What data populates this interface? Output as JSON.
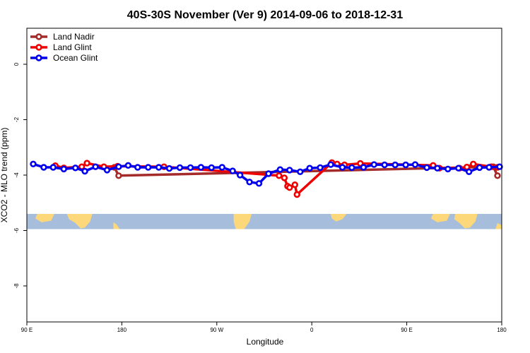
{
  "chart_data": {
    "type": "line",
    "title": "40S-30S November (Ver 9)   2014-09-06 to 2018-12-31",
    "xlabel": "Longitude",
    "ylabel": "XCO2 - MLO trend (ppm)",
    "xlim": [
      90,
      540
    ],
    "ylim": [
      -9.3,
      1.3
    ],
    "x_ticks": [
      {
        "value": 90,
        "label": "90 E"
      },
      {
        "value": 180,
        "label": "180"
      },
      {
        "value": 270,
        "label": "90 W"
      },
      {
        "value": 360,
        "label": "0"
      },
      {
        "value": 450,
        "label": "90 E"
      },
      {
        "value": 540,
        "label": "180"
      }
    ],
    "y_ticks": [
      {
        "value": 0,
        "label": "0"
      },
      {
        "value": -2,
        "label": "-2"
      },
      {
        "value": -4,
        "label": "-4"
      },
      {
        "value": -6,
        "label": "-6"
      },
      {
        "value": -8,
        "label": "-8"
      }
    ],
    "map_band": {
      "ymin": -5.95,
      "ymax": -5.4,
      "ocean_color": "#a6bedc",
      "land_color": "#fcd87a"
    },
    "legend_position": "top-left",
    "series": [
      {
        "name": "Land Nadir",
        "color": "#a52a2a",
        "points": [
          [
            173,
            -3.72
          ],
          [
            177,
            -4.02
          ],
          [
            532,
            -3.7
          ],
          [
            536,
            -4.02
          ]
        ]
      },
      {
        "name": "Land Glint",
        "color": "#ee0000",
        "points": [
          [
            117,
            -3.66
          ],
          [
            125,
            -3.74
          ],
          [
            142,
            -3.7
          ],
          [
            147,
            -3.57
          ],
          [
            163,
            -3.7
          ],
          [
            176,
            -3.68
          ],
          [
            220,
            -3.7
          ],
          [
            329,
            -4.02
          ],
          [
            334,
            -4.1
          ],
          [
            337,
            -4.4
          ],
          [
            339,
            -4.45
          ],
          [
            344,
            -4.35
          ],
          [
            346,
            -4.7
          ],
          [
            379,
            -3.55
          ],
          [
            384,
            -3.6
          ],
          [
            391,
            -3.63
          ],
          [
            406,
            -3.58
          ],
          [
            475,
            -3.65
          ],
          [
            481,
            -3.75
          ],
          [
            500,
            -3.75
          ],
          [
            507,
            -3.71
          ],
          [
            513,
            -3.6
          ],
          [
            530,
            -3.7
          ],
          [
            536,
            -3.72
          ]
        ]
      },
      {
        "name": "Ocean Glint",
        "color": "#0000ee",
        "points": [
          [
            96,
            -3.6
          ],
          [
            106,
            -3.72
          ],
          [
            115,
            -3.72
          ],
          [
            125,
            -3.78
          ],
          [
            136,
            -3.74
          ],
          [
            145,
            -3.86
          ],
          [
            155,
            -3.7
          ],
          [
            166,
            -3.82
          ],
          [
            177,
            -3.7
          ],
          [
            186,
            -3.65
          ],
          [
            195,
            -3.72
          ],
          [
            205,
            -3.72
          ],
          [
            215,
            -3.72
          ],
          [
            225,
            -3.76
          ],
          [
            235,
            -3.73
          ],
          [
            245,
            -3.73
          ],
          [
            255,
            -3.72
          ],
          [
            265,
            -3.73
          ],
          [
            275,
            -3.72
          ],
          [
            285,
            -3.85
          ],
          [
            292,
            -4.0
          ],
          [
            301,
            -4.25
          ],
          [
            310,
            -4.3
          ],
          [
            319,
            -3.95
          ],
          [
            330,
            -3.8
          ],
          [
            339,
            -3.82
          ],
          [
            349,
            -3.88
          ],
          [
            358,
            -3.75
          ],
          [
            368,
            -3.73
          ],
          [
            378,
            -3.62
          ],
          [
            389,
            -3.72
          ],
          [
            398,
            -3.73
          ],
          [
            409,
            -3.72
          ],
          [
            419,
            -3.62
          ],
          [
            429,
            -3.63
          ],
          [
            439,
            -3.63
          ],
          [
            449,
            -3.63
          ],
          [
            458,
            -3.62
          ],
          [
            469,
            -3.73
          ],
          [
            479,
            -3.75
          ],
          [
            489,
            -3.78
          ],
          [
            499,
            -3.75
          ],
          [
            509,
            -3.88
          ],
          [
            519,
            -3.73
          ],
          [
            528,
            -3.72
          ],
          [
            538,
            -3.7
          ]
        ]
      }
    ]
  }
}
